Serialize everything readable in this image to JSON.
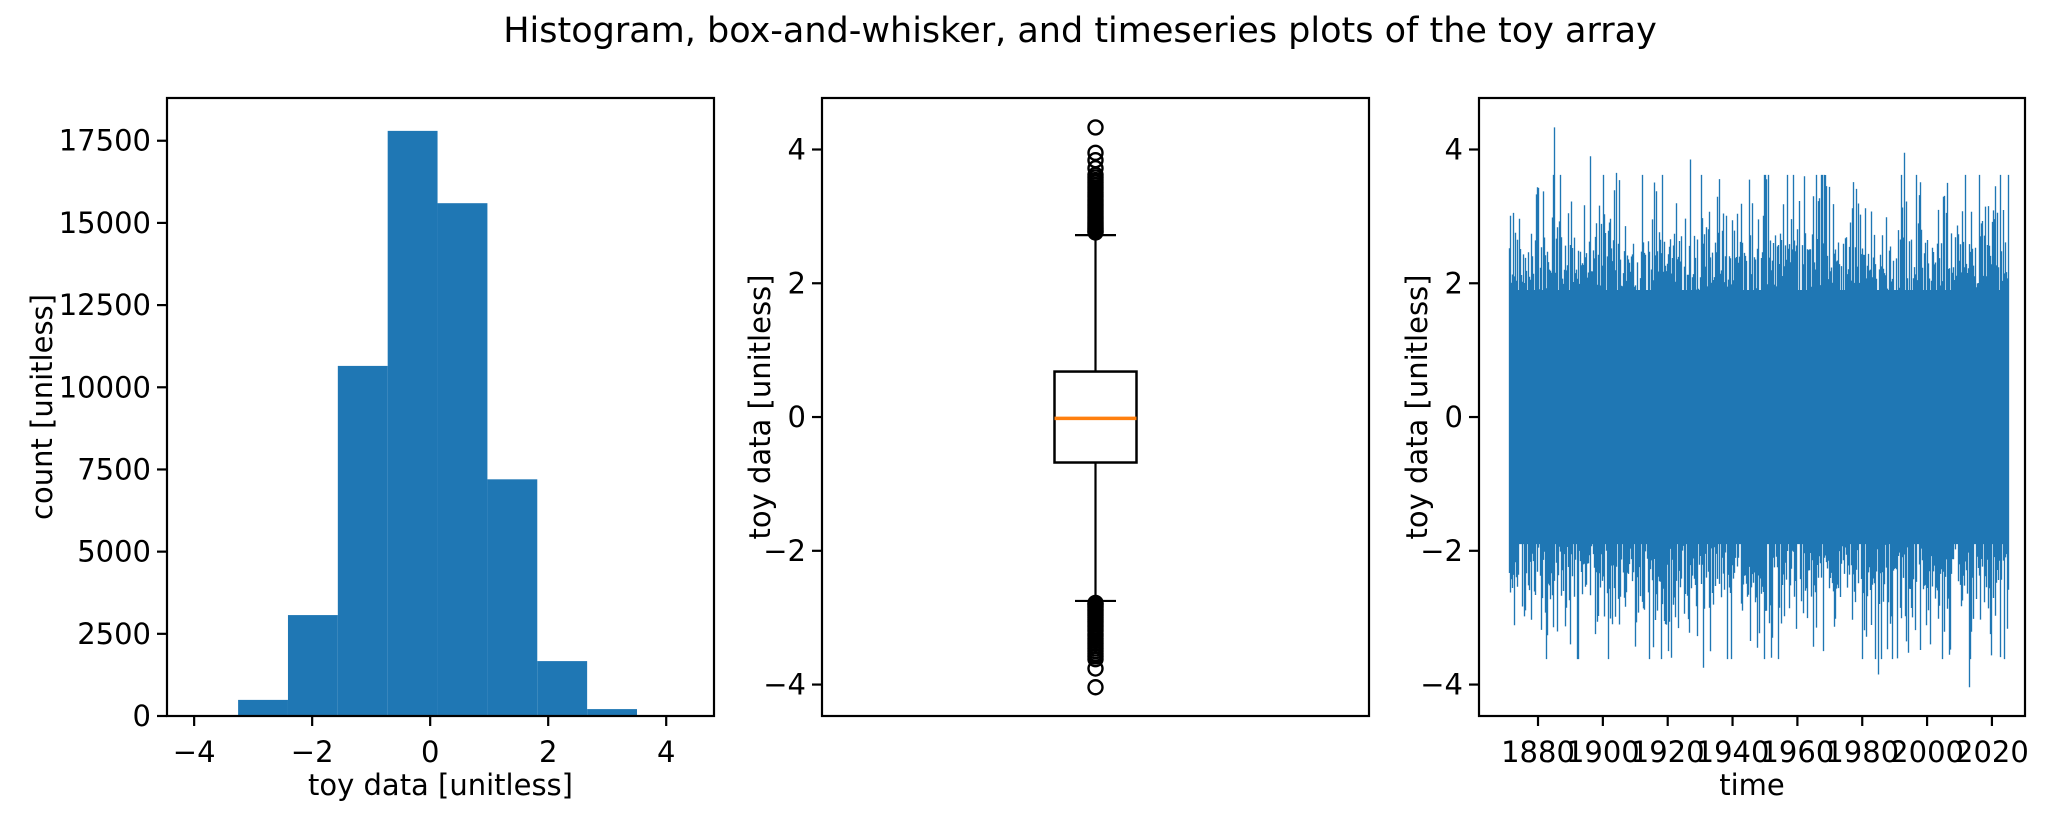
{
  "title": "Histogram, box-and-whisker, and timeseries plots of the toy array",
  "colors": {
    "series": "#1f77b4",
    "median": "#ff7f0e",
    "text": "#000000",
    "axis": "#000000",
    "background": "#ffffff"
  },
  "chart_data": [
    {
      "id": "histogram",
      "type": "bar",
      "xlabel": "toy data [unitless]",
      "ylabel": "count [unitless]",
      "bin_edges": [
        -4.1,
        -3.255,
        -2.41,
        -1.565,
        -0.72,
        0.125,
        0.97,
        1.815,
        2.66,
        3.505,
        4.35
      ],
      "counts": [
        30,
        490,
        3070,
        10650,
        17800,
        15600,
        7200,
        1670,
        210,
        15
      ],
      "xticks": [
        -4,
        -2,
        0,
        2,
        4
      ],
      "xtick_labels": [
        "−4",
        "−2",
        "0",
        "2",
        "4"
      ],
      "yticks": [
        0,
        2500,
        5000,
        7500,
        10000,
        12500,
        15000,
        17500
      ],
      "ytick_labels": [
        "0",
        "2500",
        "5000",
        "7500",
        "10000",
        "12500",
        "15000",
        "17500"
      ],
      "xlim": [
        -4.46,
        4.81
      ],
      "ylim": [
        0,
        18800
      ],
      "grid": false
    },
    {
      "id": "boxplot",
      "type": "box",
      "xlabel": "",
      "ylabel": "toy data [unitless]",
      "median": -0.02,
      "q1": -0.68,
      "q3": 0.68,
      "whisker_low": -2.75,
      "whisker_high": 2.72,
      "fliers_high_dense": {
        "from": 2.76,
        "to": 3.62,
        "count": 30
      },
      "fliers_high_isolated": [
        3.72,
        3.84,
        3.95,
        4.33
      ],
      "fliers_low_dense": {
        "from": -2.78,
        "to": -3.62,
        "count": 28
      },
      "fliers_low_isolated": [
        -3.76,
        -4.04
      ],
      "yticks": [
        -4,
        -2,
        0,
        2,
        4
      ],
      "ytick_labels": [
        "−4",
        "−2",
        "0",
        "2",
        "4"
      ],
      "ylim": [
        -4.47,
        4.77
      ],
      "grid": false
    },
    {
      "id": "timeseries",
      "type": "line",
      "xlabel": "time",
      "ylabel": "toy data [unitless]",
      "t_start": 1871,
      "t_end": 2025.2,
      "mean": 0,
      "std": 1,
      "data_min": -4.04,
      "data_max": 4.33,
      "xticks": [
        1880,
        1900,
        1920,
        1940,
        1960,
        1980,
        2000,
        2020
      ],
      "xtick_labels": [
        "1880",
        "1900",
        "1920",
        "1940",
        "1960",
        "1980",
        "2000",
        "2020"
      ],
      "yticks": [
        -4,
        -2,
        0,
        2,
        4
      ],
      "ytick_labels": [
        "−4",
        "−2",
        "0",
        "2",
        "4"
      ],
      "xlim": [
        1861.8,
        2030.2
      ],
      "ylim": [
        -4.47,
        4.77
      ],
      "envelope": {
        "base": 2.24,
        "scale": 0.42,
        "clamp": 3.62
      },
      "spikes_high": [
        [
          1885,
          4.33
        ],
        [
          1896,
          3.9
        ],
        [
          1904,
          3.65
        ],
        [
          1927,
          3.85
        ],
        [
          1945,
          3.55
        ],
        [
          1962,
          3.6
        ],
        [
          1993,
          3.95
        ],
        [
          2006,
          3.5
        ],
        [
          2021,
          3.45
        ]
      ],
      "spikes_low": [
        [
          1890,
          -3.4
        ],
        [
          1920,
          -3.5
        ],
        [
          1931,
          -3.75
        ],
        [
          1952,
          -3.6
        ],
        [
          1968,
          -3.5
        ],
        [
          1985,
          -3.85
        ],
        [
          2013,
          -4.04
        ]
      ],
      "grid": false
    }
  ]
}
